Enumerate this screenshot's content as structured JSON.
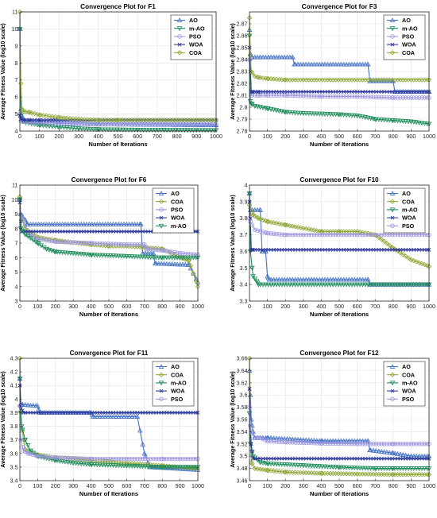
{
  "colors": {
    "AO": "#4472c4",
    "m-AO": "#1e8c5a",
    "PSO": "#9c95e0",
    "WOA": "#2e3a9c",
    "COA": "#8fa838"
  },
  "chart_data": [
    {
      "type": "line",
      "title": "Convergence Plot for F1",
      "xlabel": "Number of Iterations",
      "ylabel": "Average Fitness Value (log10 scale)",
      "xlim": [
        0,
        1000
      ],
      "ylim": [
        4,
        11
      ],
      "xticks": [
        0,
        100,
        200,
        300,
        400,
        500,
        600,
        700,
        800,
        900,
        1000
      ],
      "yticks": [
        4,
        5,
        6,
        7,
        8,
        9,
        10,
        11
      ],
      "grid": true,
      "legend": "top-right",
      "series": [
        {
          "name": "AO",
          "marker": "triangle-up",
          "x": [
            0,
            5,
            15,
            30,
            60,
            100,
            200,
            400,
            1000
          ],
          "y": [
            10.0,
            5.3,
            4.8,
            4.6,
            4.55,
            4.5,
            4.45,
            4.4,
            4.35
          ]
        },
        {
          "name": "m-AO",
          "marker": "triangle-down",
          "x": [
            0,
            5,
            15,
            30,
            100,
            200,
            300,
            400,
            600,
            1000
          ],
          "y": [
            10.0,
            4.9,
            4.6,
            4.5,
            4.35,
            4.25,
            4.15,
            4.1,
            4.07,
            4.05
          ]
        },
        {
          "name": "PSO",
          "marker": "circle",
          "x": [
            0,
            5,
            15,
            50,
            100,
            200,
            400,
            1000
          ],
          "y": [
            5.0,
            4.6,
            4.55,
            4.5,
            4.5,
            4.45,
            4.4,
            4.4
          ]
        },
        {
          "name": "WOA",
          "marker": "x",
          "x": [
            0,
            5,
            20,
            50,
            100,
            1000
          ],
          "y": [
            4.9,
            4.7,
            4.65,
            4.65,
            4.65,
            4.65
          ]
        },
        {
          "name": "COA",
          "marker": "diamond",
          "x": [
            0,
            5,
            10,
            20,
            50,
            100,
            200,
            300,
            400,
            500,
            1000
          ],
          "y": [
            11.0,
            6.8,
            5.3,
            5.15,
            5.1,
            4.95,
            4.8,
            4.7,
            4.65,
            4.65,
            4.65
          ]
        }
      ]
    },
    {
      "type": "line",
      "title": "Convergence Plot for F3",
      "xlabel": "Number of Iterations",
      "ylabel": "Average Fitness Value (log10 scale)",
      "xlim": [
        0,
        1000
      ],
      "ylim": [
        2.78,
        2.88
      ],
      "xticks": [
        0,
        100,
        200,
        300,
        400,
        500,
        600,
        700,
        800,
        900,
        1000
      ],
      "yticks": [
        2.78,
        2.79,
        2.8,
        2.81,
        2.82,
        2.83,
        2.84,
        2.85,
        2.86,
        2.87
      ],
      "grid": true,
      "legend": "top-right",
      "series": [
        {
          "name": "AO",
          "marker": "triangle-up",
          "x": [
            0,
            5,
            15,
            240,
            250,
            660,
            670,
            800,
            810,
            1000
          ],
          "y": [
            2.865,
            2.845,
            2.842,
            2.842,
            2.836,
            2.836,
            2.822,
            2.822,
            2.813,
            2.813
          ]
        },
        {
          "name": "m-AO",
          "marker": "triangle-down",
          "x": [
            0,
            5,
            10,
            30,
            100,
            200,
            300,
            500,
            600,
            700,
            800,
            900,
            1000
          ],
          "y": [
            2.86,
            2.805,
            2.803,
            2.801,
            2.799,
            2.796,
            2.795,
            2.794,
            2.793,
            2.79,
            2.789,
            2.788,
            2.786
          ]
        },
        {
          "name": "PSO",
          "marker": "circle",
          "x": [
            0,
            5,
            10,
            50,
            100,
            200,
            400,
            600,
            800,
            1000
          ],
          "y": [
            2.84,
            2.84,
            2.81,
            2.81,
            2.81,
            2.81,
            2.809,
            2.809,
            2.808,
            2.808
          ]
        },
        {
          "name": "WOA",
          "marker": "x",
          "x": [
            0,
            5,
            10,
            20,
            50,
            1000
          ],
          "y": [
            2.85,
            2.83,
            2.813,
            2.813,
            2.813,
            2.813
          ]
        },
        {
          "name": "COA",
          "marker": "diamond",
          "x": [
            0,
            5,
            10,
            30,
            50,
            100,
            200,
            300,
            1000
          ],
          "y": [
            2.875,
            2.843,
            2.83,
            2.826,
            2.825,
            2.824,
            2.823,
            2.823,
            2.823
          ]
        }
      ]
    },
    {
      "type": "line",
      "title": "Convergence Plot for F6",
      "xlabel": "Number of Iterations",
      "ylabel": "Average Fitness Value (log10 scale)",
      "xlim": [
        0,
        1000
      ],
      "ylim": [
        3,
        11
      ],
      "xticks": [
        0,
        100,
        200,
        300,
        400,
        500,
        600,
        700,
        800,
        900,
        1000
      ],
      "yticks": [
        3,
        4,
        5,
        6,
        7,
        8,
        9,
        10,
        11
      ],
      "grid": true,
      "legend": "top-right",
      "series": [
        {
          "name": "AO",
          "marker": "triangle-up",
          "x": [
            0,
            5,
            30,
            40,
            680,
            690,
            750,
            760,
            950,
            1000
          ],
          "y": [
            10.0,
            9.0,
            8.6,
            8.3,
            8.3,
            6.3,
            6.3,
            5.6,
            5.5,
            4.3
          ]
        },
        {
          "name": "COA",
          "marker": "diamond",
          "x": [
            0,
            5,
            30,
            100,
            200,
            400,
            500,
            600,
            800,
            900,
            950,
            1000
          ],
          "y": [
            10.2,
            9.0,
            8.0,
            7.4,
            7.2,
            6.9,
            6.8,
            6.8,
            6.6,
            6.0,
            5.8,
            4.0
          ]
        },
        {
          "name": "PSO",
          "marker": "circle",
          "x": [
            0,
            5,
            50,
            100,
            200,
            400,
            600,
            700,
            710,
            800,
            900,
            1000
          ],
          "y": [
            10.0,
            9.0,
            7.6,
            7.3,
            7.1,
            7.0,
            6.9,
            6.9,
            6.6,
            6.5,
            6.3,
            6.2
          ]
        },
        {
          "name": "WOA",
          "marker": "x",
          "x": [
            0,
            5,
            10,
            30,
            1000
          ],
          "y": [
            9.8,
            8.5,
            7.8,
            7.8,
            7.8
          ]
        },
        {
          "name": "m-AO",
          "marker": "triangle-down",
          "x": [
            0,
            5,
            30,
            100,
            150,
            200,
            400,
            600,
            800,
            1000
          ],
          "y": [
            10.0,
            8.0,
            7.6,
            7.0,
            6.6,
            6.4,
            6.2,
            6.1,
            6.0,
            6.0
          ]
        }
      ]
    },
    {
      "type": "line",
      "title": "Convergence Plot for F10",
      "xlabel": "Number of Iterations",
      "ylabel": "Average Fitness Value (log10 scale)",
      "xlim": [
        0,
        1000
      ],
      "ylim": [
        3.3,
        4
      ],
      "xticks": [
        0,
        100,
        200,
        300,
        400,
        500,
        600,
        700,
        800,
        900,
        1000
      ],
      "yticks": [
        3.3,
        3.4,
        3.5,
        3.6,
        3.7,
        3.8,
        3.9,
        4
      ],
      "grid": true,
      "legend": "top-right",
      "series": [
        {
          "name": "AO",
          "marker": "triangle-up",
          "x": [
            0,
            5,
            60,
            70,
            90,
            100,
            110,
            660,
            670,
            1000
          ],
          "y": [
            3.95,
            3.85,
            3.85,
            3.6,
            3.6,
            3.45,
            3.43,
            3.43,
            3.4,
            3.4
          ]
        },
        {
          "name": "COA",
          "marker": "diamond",
          "x": [
            0,
            5,
            20,
            50,
            100,
            200,
            400,
            500,
            600,
            700,
            800,
            900,
            1000
          ],
          "y": [
            3.88,
            3.86,
            3.82,
            3.8,
            3.78,
            3.76,
            3.72,
            3.72,
            3.72,
            3.7,
            3.62,
            3.55,
            3.51
          ]
        },
        {
          "name": "m-AO",
          "marker": "triangle-down",
          "x": [
            0,
            5,
            20,
            40,
            50,
            1000
          ],
          "y": [
            3.95,
            3.6,
            3.45,
            3.42,
            3.4,
            3.4
          ]
        },
        {
          "name": "WOA",
          "marker": "x",
          "x": [
            0,
            5,
            10,
            20,
            1000
          ],
          "y": [
            3.9,
            3.8,
            3.61,
            3.61,
            3.61
          ]
        },
        {
          "name": "PSO",
          "marker": "circle",
          "x": [
            0,
            5,
            30,
            100,
            200,
            1000
          ],
          "y": [
            3.8,
            3.78,
            3.73,
            3.71,
            3.7,
            3.7
          ]
        }
      ]
    },
    {
      "type": "line",
      "title": "Convergence Plot for F11",
      "xlabel": "Number of Iterations",
      "ylabel": "Average Fitness Value (log10 scale)",
      "xlim": [
        0,
        1000
      ],
      "ylim": [
        3.4,
        4.3
      ],
      "xticks": [
        0,
        100,
        200,
        300,
        400,
        500,
        600,
        700,
        800,
        900,
        1000
      ],
      "yticks": [
        3.4,
        3.5,
        3.6,
        3.7,
        3.8,
        3.9,
        4,
        4.1,
        4.2,
        4.3
      ],
      "grid": true,
      "legend": "top-right",
      "series": [
        {
          "name": "AO",
          "marker": "triangle-up",
          "x": [
            0,
            5,
            10,
            100,
            110,
            400,
            410,
            660,
            700,
            730,
            1000
          ],
          "y": [
            4.15,
            3.96,
            3.96,
            3.95,
            3.9,
            3.9,
            3.87,
            3.87,
            3.6,
            3.5,
            3.48
          ]
        },
        {
          "name": "COA",
          "marker": "diamond",
          "x": [
            0,
            5,
            20,
            30,
            60,
            100,
            200,
            400,
            600,
            800,
            1000
          ],
          "y": [
            4.3,
            3.9,
            3.7,
            3.63,
            3.61,
            3.59,
            3.57,
            3.55,
            3.53,
            3.51,
            3.49
          ]
        },
        {
          "name": "m-AO",
          "marker": "triangle-down",
          "x": [
            0,
            5,
            10,
            30,
            60,
            100,
            200,
            300,
            400,
            600,
            800,
            1000
          ],
          "y": [
            4.15,
            3.9,
            3.8,
            3.7,
            3.62,
            3.58,
            3.55,
            3.53,
            3.52,
            3.51,
            3.5,
            3.5
          ]
        },
        {
          "name": "WOA",
          "marker": "x",
          "x": [
            0,
            5,
            20,
            1000
          ],
          "y": [
            4.1,
            3.95,
            3.9,
            3.9
          ]
        },
        {
          "name": "PSO",
          "marker": "circle",
          "x": [
            0,
            5,
            20,
            50,
            100,
            200,
            400,
            600,
            800,
            1000
          ],
          "y": [
            3.95,
            3.7,
            3.62,
            3.6,
            3.58,
            3.57,
            3.56,
            3.56,
            3.56,
            3.56
          ]
        }
      ]
    },
    {
      "type": "line",
      "title": "Convergence Plot for F12",
      "xlabel": "Number of Iterations",
      "ylabel": "Average Fitness Value (log10 scale)",
      "xlim": [
        0,
        1000
      ],
      "ylim": [
        3.46,
        3.66
      ],
      "xticks": [
        0,
        100,
        200,
        300,
        400,
        500,
        600,
        700,
        800,
        900,
        1000
      ],
      "yticks": [
        3.46,
        3.48,
        3.5,
        3.52,
        3.54,
        3.56,
        3.58,
        3.6,
        3.62,
        3.64,
        3.66
      ],
      "grid": true,
      "legend": "top-right",
      "series": [
        {
          "name": "AO",
          "marker": "triangle-up",
          "x": [
            0,
            5,
            10,
            20,
            30,
            100,
            400,
            660,
            670,
            800,
            900,
            1000
          ],
          "y": [
            3.64,
            3.6,
            3.56,
            3.54,
            3.53,
            3.53,
            3.525,
            3.525,
            3.51,
            3.505,
            3.5,
            3.5
          ]
        },
        {
          "name": "COA",
          "marker": "diamond",
          "x": [
            0,
            5,
            10,
            30,
            100,
            200,
            400,
            600,
            800,
            1000
          ],
          "y": [
            3.66,
            3.55,
            3.49,
            3.48,
            3.477,
            3.474,
            3.472,
            3.471,
            3.47,
            3.47
          ]
        },
        {
          "name": "m-AO",
          "marker": "triangle-down",
          "x": [
            0,
            5,
            20,
            60,
            100,
            300,
            500,
            700,
            800,
            1000
          ],
          "y": [
            3.57,
            3.52,
            3.5,
            3.49,
            3.488,
            3.485,
            3.482,
            3.48,
            3.48,
            3.48
          ]
        },
        {
          "name": "WOA",
          "marker": "x",
          "x": [
            0,
            5,
            10,
            20,
            1000
          ],
          "y": [
            3.61,
            3.55,
            3.52,
            3.496,
            3.496
          ]
        },
        {
          "name": "PSO",
          "marker": "circle",
          "x": [
            0,
            5,
            10,
            30,
            60,
            100,
            200,
            400,
            600,
            800,
            1000
          ],
          "y": [
            3.58,
            3.55,
            3.54,
            3.53,
            3.53,
            3.525,
            3.523,
            3.521,
            3.52,
            3.52,
            3.52
          ]
        }
      ]
    }
  ]
}
